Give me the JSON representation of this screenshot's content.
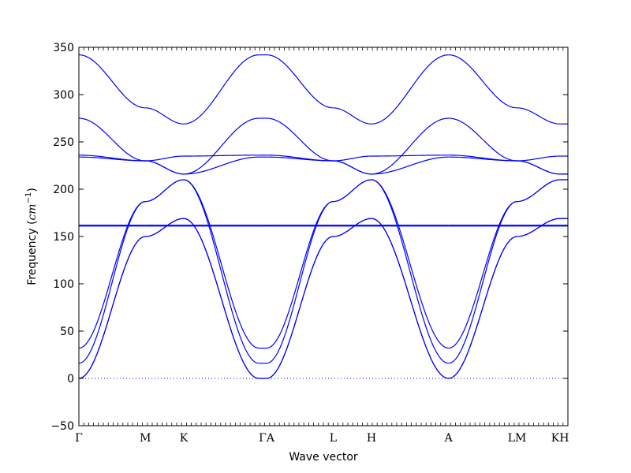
{
  "chart_data": {
    "type": "line",
    "title": "",
    "xlabel": "Wave vector",
    "ylabel": "Frequency",
    "ylabel_unit": "cm",
    "ylabel_unit_exp": "−1",
    "ylim": [
      -50,
      350
    ],
    "yticks": [
      -50,
      0,
      50,
      100,
      150,
      200,
      250,
      300,
      350
    ],
    "xlim": [
      0,
      12.5
    ],
    "grid": false,
    "legend": "none",
    "line_color": "#0000ff",
    "zero_line_color": "#0000ff",
    "kpoints": [
      {
        "label": "Γ",
        "x": 0.0
      },
      {
        "label": "M",
        "x": 1.7
      },
      {
        "label": "K",
        "x": 2.68
      },
      {
        "label": "ΓA",
        "x": 4.8
      },
      {
        "label": "L",
        "x": 6.5
      },
      {
        "label": "H",
        "x": 7.48
      },
      {
        "label": "A",
        "x": 9.45
      },
      {
        "label": "LM",
        "x": 11.2
      },
      {
        "label": "KH",
        "x": 12.3
      }
    ],
    "segments": [
      {
        "from": "Γ",
        "to": "M",
        "x": [
          0.0,
          1.7
        ],
        "bands": [
          [
            0,
            150
          ],
          [
            0,
            150
          ],
          [
            16,
            187
          ],
          [
            32,
            187
          ],
          [
            161,
            161
          ],
          [
            162,
            162
          ],
          [
            234,
            230
          ],
          [
            236,
            230
          ],
          [
            275,
            230
          ],
          [
            342,
            286
          ]
        ]
      },
      {
        "from": "M",
        "to": "K",
        "x": [
          1.7,
          2.68
        ],
        "bands": [
          [
            150,
            169
          ],
          [
            150,
            169
          ],
          [
            187,
            210
          ],
          [
            187,
            210
          ],
          [
            161,
            161
          ],
          [
            162,
            162
          ],
          [
            230,
            216
          ],
          [
            230,
            216
          ],
          [
            230,
            235
          ],
          [
            286,
            269
          ]
        ]
      },
      {
        "from": "K",
        "to": "Γ",
        "x": [
          2.68,
          4.6
        ],
        "bands": [
          [
            169,
            0
          ],
          [
            169,
            0
          ],
          [
            210,
            16
          ],
          [
            210,
            32
          ],
          [
            161,
            161
          ],
          [
            162,
            162
          ],
          [
            216,
            234
          ],
          [
            216,
            275
          ],
          [
            235,
            236
          ],
          [
            269,
            342
          ]
        ]
      },
      {
        "from": "A",
        "to": "L",
        "x": [
          4.8,
          6.5
        ],
        "bands": [
          [
            0,
            150
          ],
          [
            0,
            150
          ],
          [
            16,
            187
          ],
          [
            32,
            187
          ],
          [
            161,
            161
          ],
          [
            162,
            162
          ],
          [
            234,
            230
          ],
          [
            236,
            230
          ],
          [
            275,
            230
          ],
          [
            342,
            286
          ]
        ]
      },
      {
        "from": "L",
        "to": "H",
        "x": [
          6.5,
          7.48
        ],
        "bands": [
          [
            150,
            169
          ],
          [
            150,
            169
          ],
          [
            187,
            210
          ],
          [
            187,
            210
          ],
          [
            161,
            161
          ],
          [
            162,
            162
          ],
          [
            230,
            216
          ],
          [
            230,
            216
          ],
          [
            230,
            235
          ],
          [
            286,
            269
          ]
        ]
      },
      {
        "from": "H",
        "to": "A",
        "x": [
          7.48,
          9.45
        ],
        "bands": [
          [
            169,
            0
          ],
          [
            169,
            0
          ],
          [
            210,
            16
          ],
          [
            210,
            32
          ],
          [
            161,
            161
          ],
          [
            162,
            162
          ],
          [
            216,
            234
          ],
          [
            216,
            275
          ],
          [
            235,
            236
          ],
          [
            269,
            342
          ]
        ]
      },
      {
        "from": "A",
        "to": "L",
        "x": [
          9.45,
          11.2
        ],
        "bands": [
          [
            0,
            150
          ],
          [
            0,
            150
          ],
          [
            16,
            187
          ],
          [
            32,
            187
          ],
          [
            161,
            161
          ],
          [
            162,
            162
          ],
          [
            234,
            230
          ],
          [
            236,
            230
          ],
          [
            275,
            230
          ],
          [
            342,
            286
          ]
        ]
      },
      {
        "from": "M",
        "to": "K",
        "x": [
          11.2,
          12.3
        ],
        "bands": [
          [
            150,
            169
          ],
          [
            150,
            169
          ],
          [
            187,
            210
          ],
          [
            187,
            210
          ],
          [
            161,
            161
          ],
          [
            162,
            162
          ],
          [
            230,
            216
          ],
          [
            230,
            216
          ],
          [
            230,
            235
          ],
          [
            286,
            269
          ]
        ]
      },
      {
        "from": "K",
        "to": "H",
        "x": [
          12.3,
          12.5
        ],
        "bands": [
          [
            169,
            169
          ],
          [
            169,
            169
          ],
          [
            210,
            210
          ],
          [
            210,
            210
          ],
          [
            161,
            161
          ],
          [
            162,
            162
          ],
          [
            216,
            216
          ],
          [
            216,
            216
          ],
          [
            235,
            235
          ],
          [
            269,
            269
          ]
        ]
      }
    ],
    "flat_segment": {
      "from": "Γ",
      "to": "A",
      "x": [
        4.6,
        4.8
      ],
      "bands": [
        0,
        0,
        16,
        32,
        161,
        162,
        234,
        236,
        275,
        342
      ]
    }
  }
}
